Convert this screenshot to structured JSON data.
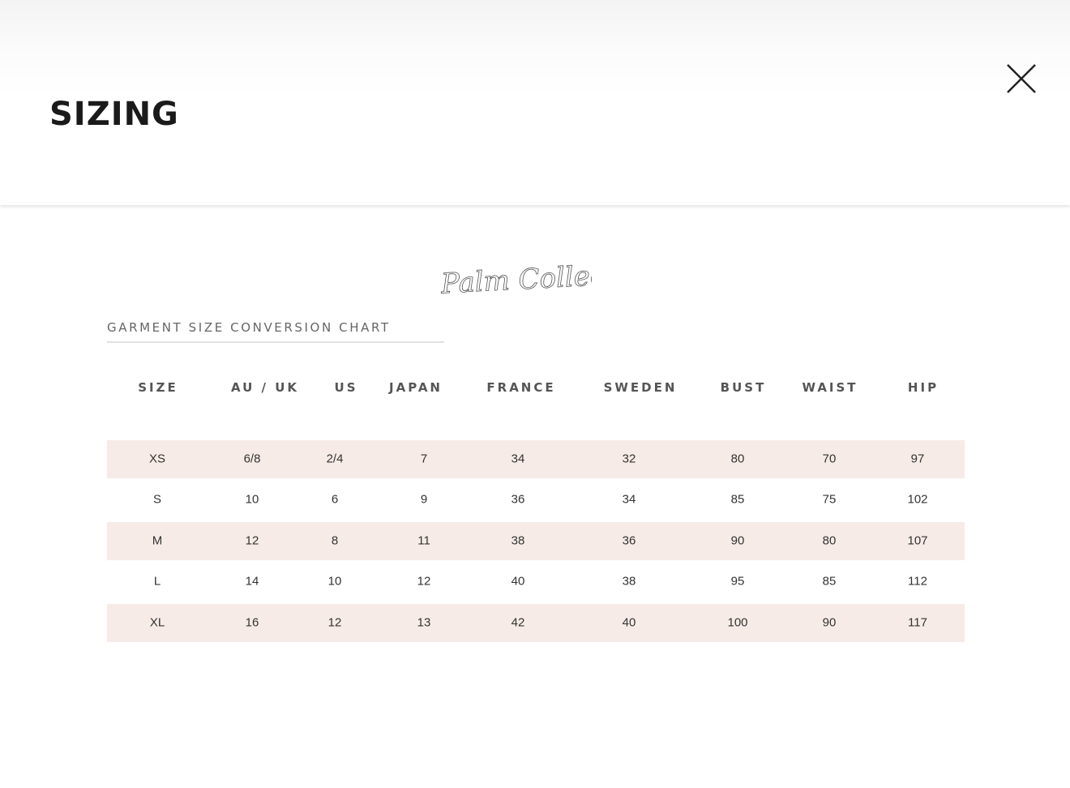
{
  "modal": {
    "title": "SIZING",
    "close_icon": "close-icon"
  },
  "brand": {
    "logo_text": "Palm Collective"
  },
  "chart": {
    "title": "GARMENT SIZE CONVERSION CHART",
    "row_band_color": "#f6ebe6",
    "headers": [
      "SIZE",
      "AU / UK",
      "US",
      "JAPAN",
      "FRANCE",
      "SWEDEN",
      "BUST",
      "WAIST",
      "HIP"
    ],
    "rows": [
      [
        "XS",
        "6/8",
        "2/4",
        "7",
        "34",
        "32",
        "80",
        "70",
        "97"
      ],
      [
        "S",
        "10",
        "6",
        "9",
        "36",
        "34",
        "85",
        "75",
        "102"
      ],
      [
        "M",
        "12",
        "8",
        "11",
        "38",
        "36",
        "90",
        "80",
        "107"
      ],
      [
        "L",
        "14",
        "10",
        "12",
        "40",
        "38",
        "95",
        "85",
        "112"
      ],
      [
        "XL",
        "16",
        "12",
        "13",
        "42",
        "40",
        "100",
        "90",
        "117"
      ]
    ]
  }
}
